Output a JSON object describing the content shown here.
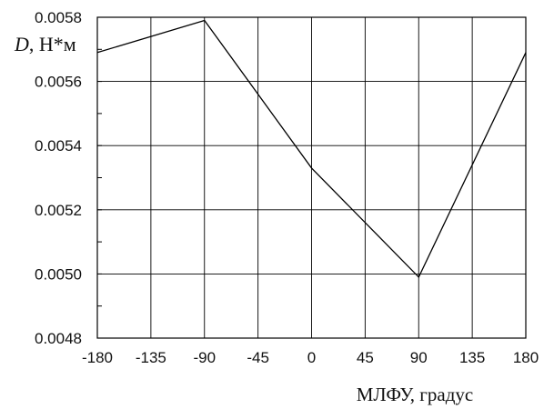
{
  "chart_data": {
    "type": "line",
    "title": "",
    "xlabel": "МЛФУ, градус",
    "ylabel_symbol": "D",
    "ylabel_unit": ", Н*м",
    "xlim": [
      -180,
      180
    ],
    "ylim": [
      0.0048,
      0.0058
    ],
    "x_ticks": [
      -180,
      -135,
      -90,
      -45,
      0,
      45,
      90,
      135,
      180
    ],
    "x_tick_labels": [
      "-180",
      "-135",
      "-90",
      "-45",
      "0",
      "45",
      "90",
      "135",
      "180"
    ],
    "y_ticks": [
      0.0048,
      0.005,
      0.0052,
      0.0054,
      0.0056,
      0.0058
    ],
    "y_tick_labels": [
      "0.0048",
      "0.0050",
      "0.0052",
      "0.0054",
      "0.0056",
      "0.0058"
    ],
    "y_minor_step": 0.0001,
    "grid": true,
    "series": [
      {
        "x": [
          -180,
          -90,
          0,
          90,
          180
        ],
        "y": [
          0.00569,
          0.00579,
          0.00533,
          0.00499,
          0.00569
        ]
      }
    ],
    "line_color": "#000000"
  }
}
